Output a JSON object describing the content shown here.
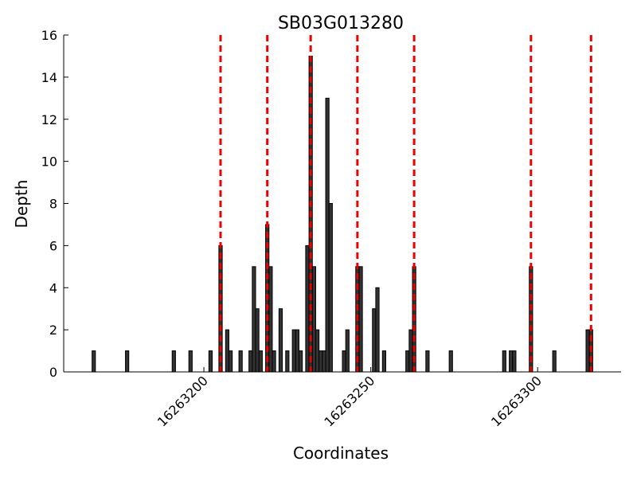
{
  "chart_data": {
    "type": "bar",
    "title": "SB03G013280",
    "x_label": "Coordinates",
    "y_label": "Depth",
    "x": [
      16263167,
      16263177,
      16263191,
      16263196,
      16263202,
      16263205,
      16263207,
      16263208,
      16263211,
      16263214,
      16263215,
      16263216,
      16263217,
      16263219,
      16263220,
      16263221,
      16263223,
      16263225,
      16263227,
      16263228,
      16263229,
      16263231,
      16263232,
      16263233,
      16263234,
      16263235,
      16263236,
      16263237,
      16263238,
      16263242,
      16263243,
      16263246,
      16263247,
      16263251,
      16263252,
      16263254,
      16263261,
      16263262,
      16263263,
      16263267,
      16263274,
      16263290,
      16263292,
      16263293,
      16263298,
      16263305,
      16263315,
      16263316
    ],
    "values": [
      1,
      1,
      1,
      1,
      1,
      6,
      2,
      1,
      1,
      1,
      5,
      3,
      1,
      7,
      5,
      1,
      3,
      1,
      2,
      2,
      1,
      6,
      15,
      5,
      2,
      1,
      1,
      13,
      8,
      1,
      2,
      5,
      5,
      3,
      4,
      1,
      1,
      2,
      5,
      1,
      1,
      1,
      1,
      1,
      5,
      1,
      2,
      2
    ],
    "color": "#333333",
    "markers": [
      16263205,
      16263219,
      16263232,
      16263246,
      16263263,
      16263298,
      16263316
    ],
    "marker_color": "#ee0000",
    "xlim": [
      16263158,
      16263325
    ],
    "xticks": [
      16263200,
      16263250,
      16263300
    ],
    "ylim": [
      0,
      16
    ],
    "yticks": [
      0,
      2,
      4,
      6,
      8,
      10,
      12,
      14,
      16
    ]
  }
}
